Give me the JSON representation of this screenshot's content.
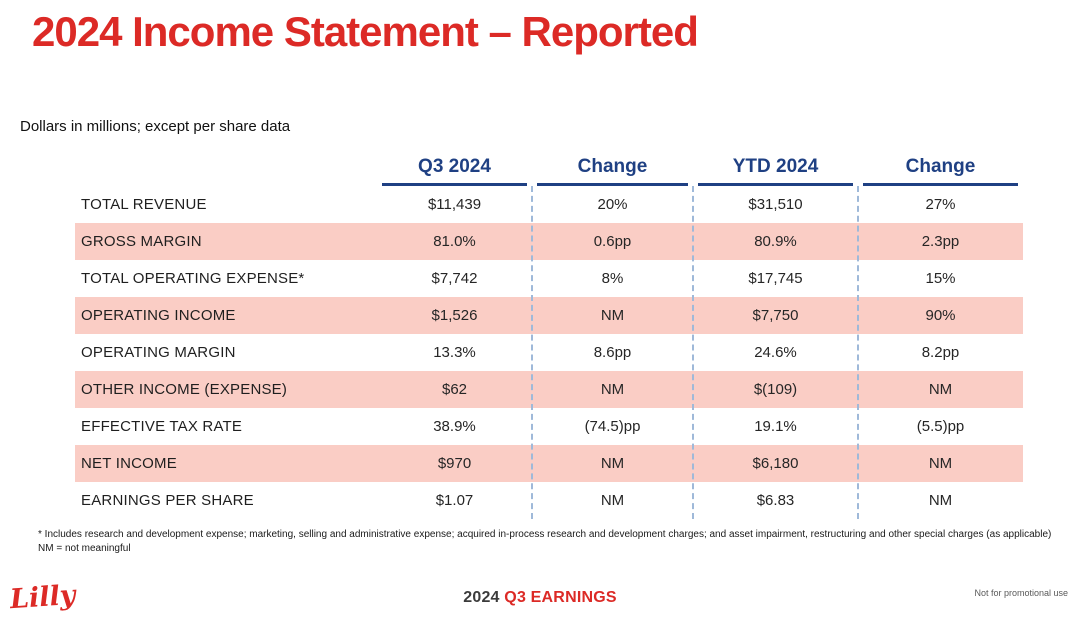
{
  "title": "2024 Income Statement – Reported",
  "subtitle": "Dollars in millions; except per share data",
  "chart_data": {
    "type": "table",
    "columns": [
      "",
      "Q3 2024",
      "Change",
      "YTD 2024",
      "Change"
    ],
    "rows": [
      {
        "label": "TOTAL REVENUE",
        "q3": "$11,439",
        "chg_q3": "20%",
        "ytd": "$31,510",
        "chg_ytd": "27%",
        "highlight": false
      },
      {
        "label": "GROSS MARGIN",
        "q3": "81.0%",
        "chg_q3": "0.6pp",
        "ytd": "80.9%",
        "chg_ytd": "2.3pp",
        "highlight": true
      },
      {
        "label": "TOTAL OPERATING EXPENSE*",
        "q3": "$7,742",
        "chg_q3": "8%",
        "ytd": "$17,745",
        "chg_ytd": "15%",
        "highlight": false
      },
      {
        "label": "OPERATING INCOME",
        "q3": "$1,526",
        "chg_q3": "NM",
        "ytd": "$7,750",
        "chg_ytd": "90%",
        "highlight": true
      },
      {
        "label": "OPERATING MARGIN",
        "q3": "13.3%",
        "chg_q3": "8.6pp",
        "ytd": "24.6%",
        "chg_ytd": "8.2pp",
        "highlight": false
      },
      {
        "label": "OTHER INCOME (EXPENSE)",
        "q3": "$62",
        "chg_q3": "NM",
        "ytd": "$(109)",
        "chg_ytd": "NM",
        "highlight": true
      },
      {
        "label": "EFFECTIVE TAX RATE",
        "q3": "38.9%",
        "chg_q3": "(74.5)pp",
        "ytd": "19.1%",
        "chg_ytd": "(5.5)pp",
        "highlight": false
      },
      {
        "label": "NET INCOME",
        "q3": "$970",
        "chg_q3": "NM",
        "ytd": "$6,180",
        "chg_ytd": "NM",
        "highlight": true
      },
      {
        "label": "EARNINGS PER SHARE",
        "q3": "$1.07",
        "chg_q3": "NM",
        "ytd": "$6.83",
        "chg_ytd": "NM",
        "highlight": false
      }
    ]
  },
  "footnotes": {
    "line1": "* Includes research and development expense; marketing, selling and administrative expense; acquired in-process research and development charges; and asset impairment, restructuring and other special charges (as applicable)",
    "line2": "NM = not meaningful"
  },
  "footer": {
    "logo_text": "Lilly",
    "year": "2024 ",
    "event": "Q3 EARNINGS",
    "note": "Not for promotional use"
  },
  "colors": {
    "accent_red": "#dc2a26",
    "header_navy": "#1f4083",
    "row_highlight_pink": "#facdc5",
    "divider_blue": "#9fb9d9"
  }
}
